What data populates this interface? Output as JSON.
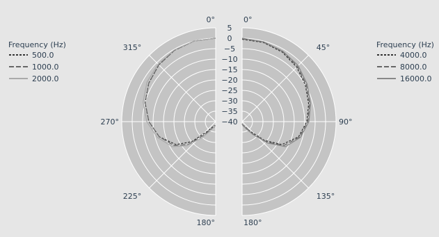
{
  "chart_data": {
    "type": "polar-line",
    "title": "",
    "radial_axis": {
      "range": [
        -40,
        5
      ],
      "ticks": [
        "5",
        "0",
        "−5",
        "−10",
        "−15",
        "−20",
        "−25",
        "−30",
        "−35",
        "−40"
      ],
      "tick_values": [
        5,
        0,
        -5,
        -10,
        -15,
        -20,
        -25,
        -30,
        -35,
        -40
      ],
      "unit": ""
    },
    "angular_axis": {
      "left_half_labels": [
        "0°",
        "315°",
        "270°",
        "225°",
        "180°"
      ],
      "right_half_labels": [
        "0°",
        "45°",
        "90°",
        "135°",
        "180°"
      ],
      "direction": "clockwise",
      "zero_at": "top"
    },
    "legends": [
      {
        "title": "Frequency (Hz)",
        "placement": "left",
        "entries": [
          {
            "name": "500.0",
            "color": "#333333",
            "dash": "3,2"
          },
          {
            "name": "1000.0",
            "color": "#666666",
            "dash": "7,3"
          },
          {
            "name": "2000.0",
            "color": "#aaaaaa",
            "dash": ""
          }
        ]
      },
      {
        "title": "Frequency (Hz)",
        "placement": "right",
        "entries": [
          {
            "name": "4000.0",
            "color": "#333333",
            "dash": "3,2"
          },
          {
            "name": "8000.0",
            "color": "#666666",
            "dash": "7,3"
          },
          {
            "name": "16000.0",
            "color": "#888888",
            "dash": ""
          }
        ]
      }
    ],
    "left_series": [
      {
        "name": "500.0",
        "points": [
          [
            0,
            0
          ],
          [
            15,
            0
          ],
          [
            30,
            -0.5
          ],
          [
            45,
            -1.5
          ],
          [
            60,
            -3
          ],
          [
            75,
            -5
          ],
          [
            90,
            -8
          ],
          [
            105,
            -12
          ],
          [
            120,
            -18
          ],
          [
            130,
            -25
          ],
          [
            140,
            -34
          ],
          [
            150,
            -37
          ],
          [
            160,
            -38
          ],
          [
            170,
            -38
          ],
          [
            180,
            -38
          ]
        ]
      },
      {
        "name": "1000.0",
        "points": [
          [
            0,
            0
          ],
          [
            15,
            0
          ],
          [
            30,
            -0.5
          ],
          [
            45,
            -1.5
          ],
          [
            60,
            -3
          ],
          [
            75,
            -5
          ],
          [
            90,
            -8
          ],
          [
            105,
            -12
          ],
          [
            120,
            -17
          ],
          [
            130,
            -23
          ],
          [
            140,
            -32
          ],
          [
            150,
            -36
          ],
          [
            160,
            -37
          ],
          [
            170,
            -37.5
          ],
          [
            180,
            -38
          ]
        ]
      },
      {
        "name": "2000.0",
        "points": [
          [
            0,
            0
          ],
          [
            15,
            0
          ],
          [
            30,
            -0.3
          ],
          [
            45,
            -1
          ],
          [
            60,
            -2
          ],
          [
            75,
            -4
          ],
          [
            90,
            -7
          ],
          [
            105,
            -11
          ],
          [
            120,
            -16
          ],
          [
            130,
            -22
          ],
          [
            140,
            -30
          ],
          [
            150,
            -35
          ],
          [
            160,
            -37
          ],
          [
            170,
            -38
          ],
          [
            180,
            -38
          ]
        ]
      }
    ],
    "right_series": [
      {
        "name": "4000.0",
        "points": [
          [
            0,
            -0.5
          ],
          [
            15,
            -0.7
          ],
          [
            30,
            -1.5
          ],
          [
            45,
            -3
          ],
          [
            60,
            -5
          ],
          [
            75,
            -7
          ],
          [
            90,
            -9
          ],
          [
            105,
            -12
          ],
          [
            120,
            -18
          ],
          [
            130,
            -26
          ],
          [
            140,
            -34
          ],
          [
            150,
            -37
          ],
          [
            160,
            -38
          ],
          [
            170,
            -38.5
          ],
          [
            180,
            -39
          ]
        ]
      },
      {
        "name": "8000.0",
        "points": [
          [
            0,
            -0.3
          ],
          [
            15,
            -0.5
          ],
          [
            30,
            -1.2
          ],
          [
            45,
            -2.5
          ],
          [
            60,
            -4.5
          ],
          [
            75,
            -6.5
          ],
          [
            90,
            -8.5
          ],
          [
            105,
            -11.5
          ],
          [
            120,
            -17
          ],
          [
            130,
            -25
          ],
          [
            140,
            -33
          ],
          [
            150,
            -37
          ],
          [
            160,
            -38
          ],
          [
            170,
            -38.5
          ],
          [
            180,
            -39
          ]
        ]
      },
      {
        "name": "16000.0",
        "points": [
          [
            0,
            0
          ],
          [
            15,
            -0.3
          ],
          [
            30,
            -1
          ],
          [
            45,
            -2
          ],
          [
            60,
            -4
          ],
          [
            75,
            -6
          ],
          [
            90,
            -8
          ],
          [
            105,
            -11
          ],
          [
            120,
            -16
          ],
          [
            130,
            -24
          ],
          [
            140,
            -32
          ],
          [
            150,
            -36
          ],
          [
            160,
            -37.5
          ],
          [
            170,
            -38
          ],
          [
            180,
            -39
          ]
        ]
      }
    ],
    "grid": true,
    "background_color": "#c4c4c4",
    "grid_color": "#ffffff",
    "page_background": "#e6e6e6"
  }
}
